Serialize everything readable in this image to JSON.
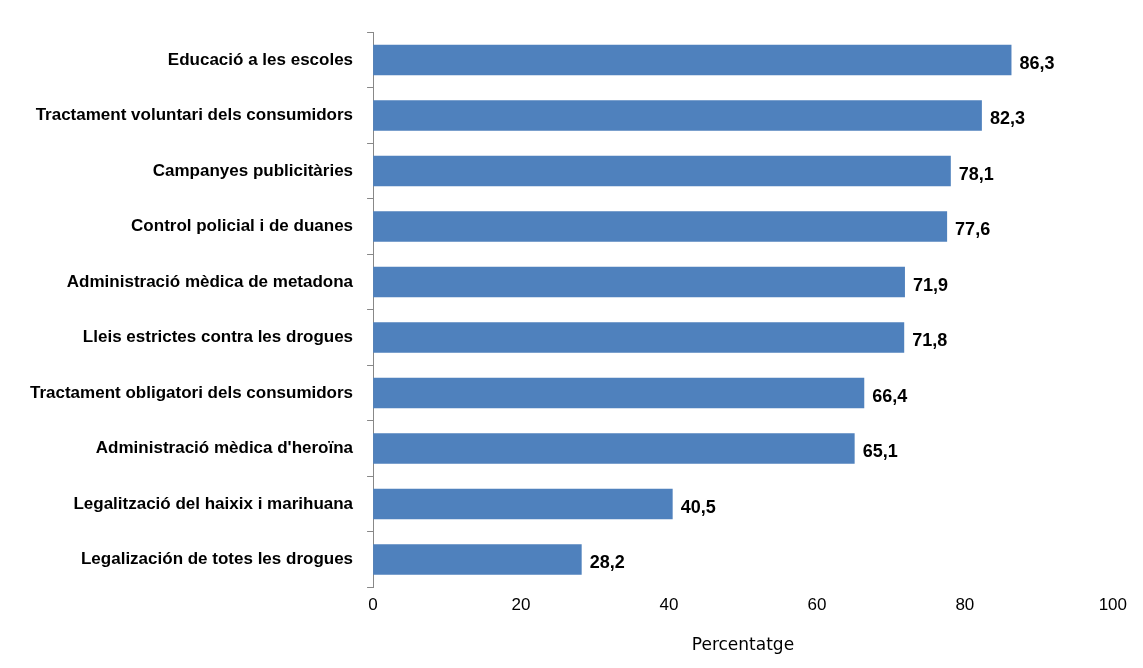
{
  "chart_data": {
    "type": "bar",
    "orientation": "horizontal",
    "xlabel": "Percentatge",
    "categories": [
      "Educació a les escoles",
      "Tractament voluntari dels consumidors",
      "Campanyes publicitàries",
      "Control policial i de duanes",
      "Administració mèdica de metadona",
      "Lleis estrictes contra les drogues",
      "Tractament obligatori dels consumidors",
      "Administració mèdica d'heroïna",
      "Legalització del haixix i marihuana",
      "Legalización de totes les drogues"
    ],
    "values": [
      86.3,
      82.3,
      78.1,
      77.6,
      71.9,
      71.8,
      66.4,
      65.1,
      40.5,
      28.2
    ],
    "value_labels": [
      "86,3",
      "82,3",
      "78,1",
      "77,6",
      "71,9",
      "71,8",
      "66,4",
      "65,1",
      "40,5",
      "28,2"
    ],
    "color": "#4f81bd",
    "xlim": [
      0,
      100
    ],
    "xticks": [
      0,
      20,
      40,
      60,
      80,
      100
    ],
    "grid": false,
    "legend": false
  }
}
